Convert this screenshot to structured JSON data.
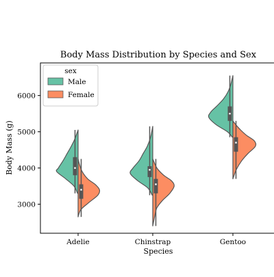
{
  "chart_data": {
    "type": "violin",
    "title": "Body Mass Distribution by Species and Sex",
    "xlabel": "Species",
    "ylabel": "Body Mass (g)",
    "categories": [
      "Adelie",
      "Chinstrap",
      "Gentoo"
    ],
    "ylim": [
      2200,
      6900
    ],
    "yticks": [
      3000,
      4000,
      5000,
      6000
    ],
    "grid": false,
    "legend": {
      "title": "sex",
      "placement": "top-left"
    },
    "series": [
      {
        "name": "Male",
        "color": "#66c2a5",
        "side": "left",
        "violins": [
          {
            "category": "Adelie",
            "min": 3300,
            "max": 5050,
            "q1": 3800,
            "median": 4000,
            "q3": 4300,
            "density": [
              [
                3300,
                0.02
              ],
              [
                3500,
                0.15
              ],
              [
                3700,
                0.45
              ],
              [
                3900,
                0.78
              ],
              [
                4000,
                0.72
              ],
              [
                4200,
                0.55
              ],
              [
                4400,
                0.4
              ],
              [
                4600,
                0.25
              ],
              [
                4800,
                0.12
              ],
              [
                5050,
                0.0
              ]
            ]
          },
          {
            "category": "Chinstrap",
            "min": 3250,
            "max": 5150,
            "q1": 3750,
            "median": 3950,
            "q3": 4050,
            "density": [
              [
                3250,
                0.02
              ],
              [
                3450,
                0.18
              ],
              [
                3650,
                0.55
              ],
              [
                3850,
                0.82
              ],
              [
                4000,
                0.72
              ],
              [
                4200,
                0.5
              ],
              [
                4400,
                0.35
              ],
              [
                4600,
                0.2
              ],
              [
                4850,
                0.08
              ],
              [
                5150,
                0.0
              ]
            ]
          },
          {
            "category": "Gentoo",
            "min": 4850,
            "max": 6550,
            "q1": 5300,
            "median": 5500,
            "q3": 5700,
            "density": [
              [
                4850,
                0.02
              ],
              [
                5000,
                0.2
              ],
              [
                5200,
                0.62
              ],
              [
                5400,
                0.88
              ],
              [
                5550,
                0.8
              ],
              [
                5700,
                0.6
              ],
              [
                5900,
                0.35
              ],
              [
                6100,
                0.18
              ],
              [
                6300,
                0.08
              ],
              [
                6550,
                0.0
              ]
            ]
          }
        ]
      },
      {
        "name": "Female",
        "color": "#fc8d62",
        "side": "right",
        "violins": [
          {
            "category": "Adelie",
            "min": 2650,
            "max": 4250,
            "q1": 3150,
            "median": 3400,
            "q3": 3550,
            "density": [
              [
                2650,
                0.0
              ],
              [
                2850,
                0.1
              ],
              [
                3050,
                0.4
              ],
              [
                3250,
                0.72
              ],
              [
                3400,
                0.78
              ],
              [
                3550,
                0.62
              ],
              [
                3700,
                0.35
              ],
              [
                3900,
                0.15
              ],
              [
                4100,
                0.05
              ],
              [
                4250,
                0.0
              ]
            ]
          },
          {
            "category": "Chinstrap",
            "min": 2400,
            "max": 4250,
            "q1": 3300,
            "median": 3550,
            "q3": 3700,
            "density": [
              [
                2400,
                0.0
              ],
              [
                2700,
                0.08
              ],
              [
                2900,
                0.15
              ],
              [
                3100,
                0.35
              ],
              [
                3300,
                0.62
              ],
              [
                3500,
                0.78
              ],
              [
                3650,
                0.68
              ],
              [
                3800,
                0.4
              ],
              [
                4000,
                0.15
              ],
              [
                4250,
                0.0
              ]
            ]
          },
          {
            "category": "Gentoo",
            "min": 3700,
            "max": 5300,
            "q1": 4450,
            "median": 4700,
            "q3": 4850,
            "density": [
              [
                3700,
                0.0
              ],
              [
                3950,
                0.12
              ],
              [
                4200,
                0.32
              ],
              [
                4400,
                0.55
              ],
              [
                4600,
                0.82
              ],
              [
                4750,
                0.78
              ],
              [
                4900,
                0.5
              ],
              [
                5050,
                0.28
              ],
              [
                5200,
                0.1
              ],
              [
                5300,
                0.0
              ]
            ]
          }
        ]
      }
    ]
  },
  "colors": {
    "male": "#66c2a5",
    "female": "#fc8d62",
    "outline": "#555555",
    "box": "#555555"
  }
}
